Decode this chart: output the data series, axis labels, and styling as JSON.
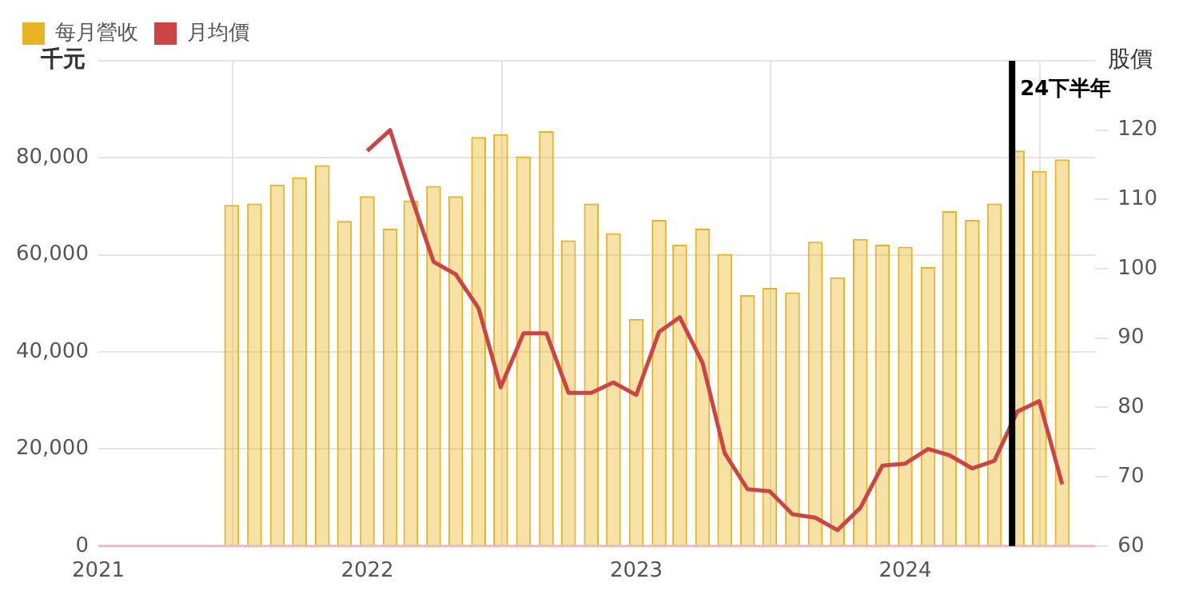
{
  "chart_data": {
    "type": "bar",
    "x": [
      "2021-07",
      "2021-08",
      "2021-09",
      "2021-10",
      "2021-11",
      "2021-12",
      "2022-01",
      "2022-02",
      "2022-03",
      "2022-04",
      "2022-05",
      "2022-06",
      "2022-07",
      "2022-08",
      "2022-09",
      "2022-10",
      "2022-11",
      "2022-12",
      "2023-01",
      "2023-02",
      "2023-03",
      "2023-04",
      "2023-05",
      "2023-06",
      "2023-07",
      "2023-08",
      "2023-09",
      "2023-10",
      "2023-11",
      "2023-12",
      "2024-01",
      "2024-02",
      "2024-03",
      "2024-04",
      "2024-05",
      "2024-06",
      "2024-07",
      "2024-08"
    ],
    "series": [
      {
        "name": "每月營收",
        "color": "#e8b323",
        "values": [
          70300,
          70600,
          74500,
          76000,
          78500,
          67000,
          72100,
          65400,
          71200,
          74200,
          72100,
          84300,
          84900,
          80300,
          85500,
          63000,
          70600,
          64500,
          46800,
          67200,
          62100,
          65400,
          60200,
          51700,
          53200,
          52300,
          62700,
          55400,
          63300,
          62100,
          61700,
          57500,
          69000,
          67200,
          70600,
          81500,
          77300,
          79700
        ]
      },
      {
        "name": "月均價",
        "type": "line",
        "axis": "y2",
        "color": "#cc4444",
        "x": [
          "2022-01",
          "2022-02",
          "2022-03",
          "2022-04",
          "2022-05",
          "2022-06",
          "2022-07",
          "2022-08",
          "2022-09",
          "2022-10",
          "2022-11",
          "2022-12",
          "2023-01",
          "2023-02",
          "2023-03",
          "2023-04",
          "2023-05",
          "2023-06",
          "2023-07",
          "2023-08",
          "2023-09",
          "2023-10",
          "2023-11",
          "2023-12",
          "2024-01",
          "2024-02",
          "2024-03",
          "2024-04",
          "2024-05",
          "2024-06",
          "2024-07",
          "2024-08"
        ],
        "values": [
          117.0,
          120.0,
          110.6,
          101.0,
          99.2,
          94.3,
          82.9,
          90.7,
          90.7,
          82.1,
          82.1,
          83.6,
          81.8,
          90.9,
          93.0,
          86.4,
          73.4,
          68.2,
          67.9,
          64.6,
          64.1,
          62.3,
          65.5,
          71.6,
          71.9,
          74.0,
          73.1,
          71.2,
          72.3,
          79.4,
          80.9,
          68.9
        ]
      }
    ],
    "ylabel": "千元",
    "y2label": "股價",
    "xlim": [
      "2021-01",
      "2024-09-15"
    ],
    "xticks": [
      "2021",
      "2022",
      "2023",
      "2024"
    ],
    "ylim": [
      0,
      100000
    ],
    "yticks": [
      0,
      {
        "value": 20000,
        "label": "20,000"
      },
      {
        "value": 40000,
        "label": "40,000"
      },
      {
        "value": 60000,
        "label": "60,000"
      },
      {
        "value": 80000,
        "label": "80,000"
      },
      {
        "value": 100000,
        "label": null
      }
    ],
    "y2lim": [
      60,
      130
    ],
    "y2ticks": [
      60,
      70,
      80,
      90,
      100,
      110,
      120
    ],
    "grid": true,
    "legend": "top left",
    "marker": "none",
    "line_style": "solid",
    "ref_lines": [
      {
        "axis": "x",
        "value": "2024-05-25",
        "label": "24下半年",
        "color": "#000000"
      }
    ]
  }
}
